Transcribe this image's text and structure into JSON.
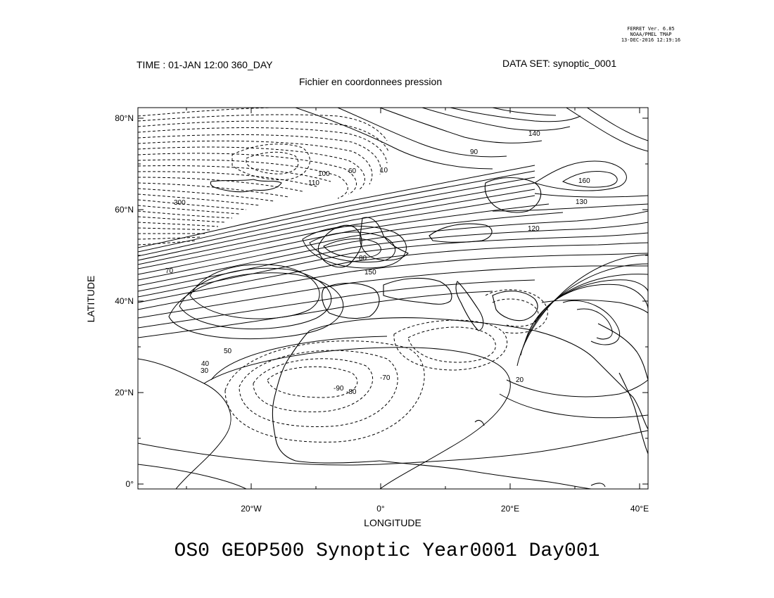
{
  "header": {
    "ferret_lines": [
      "FERRET Ver. 6.85",
      "NOAA/PMEL TMAP",
      "13-DEC-2016 12:19:16"
    ],
    "time": "TIME : 01-JAN 12:00 360_DAY",
    "dataset": "DATA SET: synoptic_0001",
    "subtitle": "Fichier en coordonnees pression"
  },
  "axes": {
    "x_label": "LONGITUDE",
    "y_label": "LATITUDE",
    "x_ticks": [
      "20°W",
      "0°",
      "20°E",
      "40°E"
    ],
    "y_ticks": [
      "0°",
      "20°N",
      "40°N",
      "60°N",
      "80°N"
    ],
    "lon_range": [
      -37,
      41.5
    ],
    "lat_range": [
      -1,
      83
    ]
  },
  "contour_labels": [
    "300",
    "110",
    "100",
    "90",
    "80",
    "60",
    "10",
    "140",
    "130",
    "120",
    "160",
    "150",
    "50",
    "70",
    "40",
    "30",
    "20",
    "-90",
    "-80",
    "-70"
  ],
  "bottom_title": "OS0 GEOP500 Synoptic Year0001 Day001"
}
